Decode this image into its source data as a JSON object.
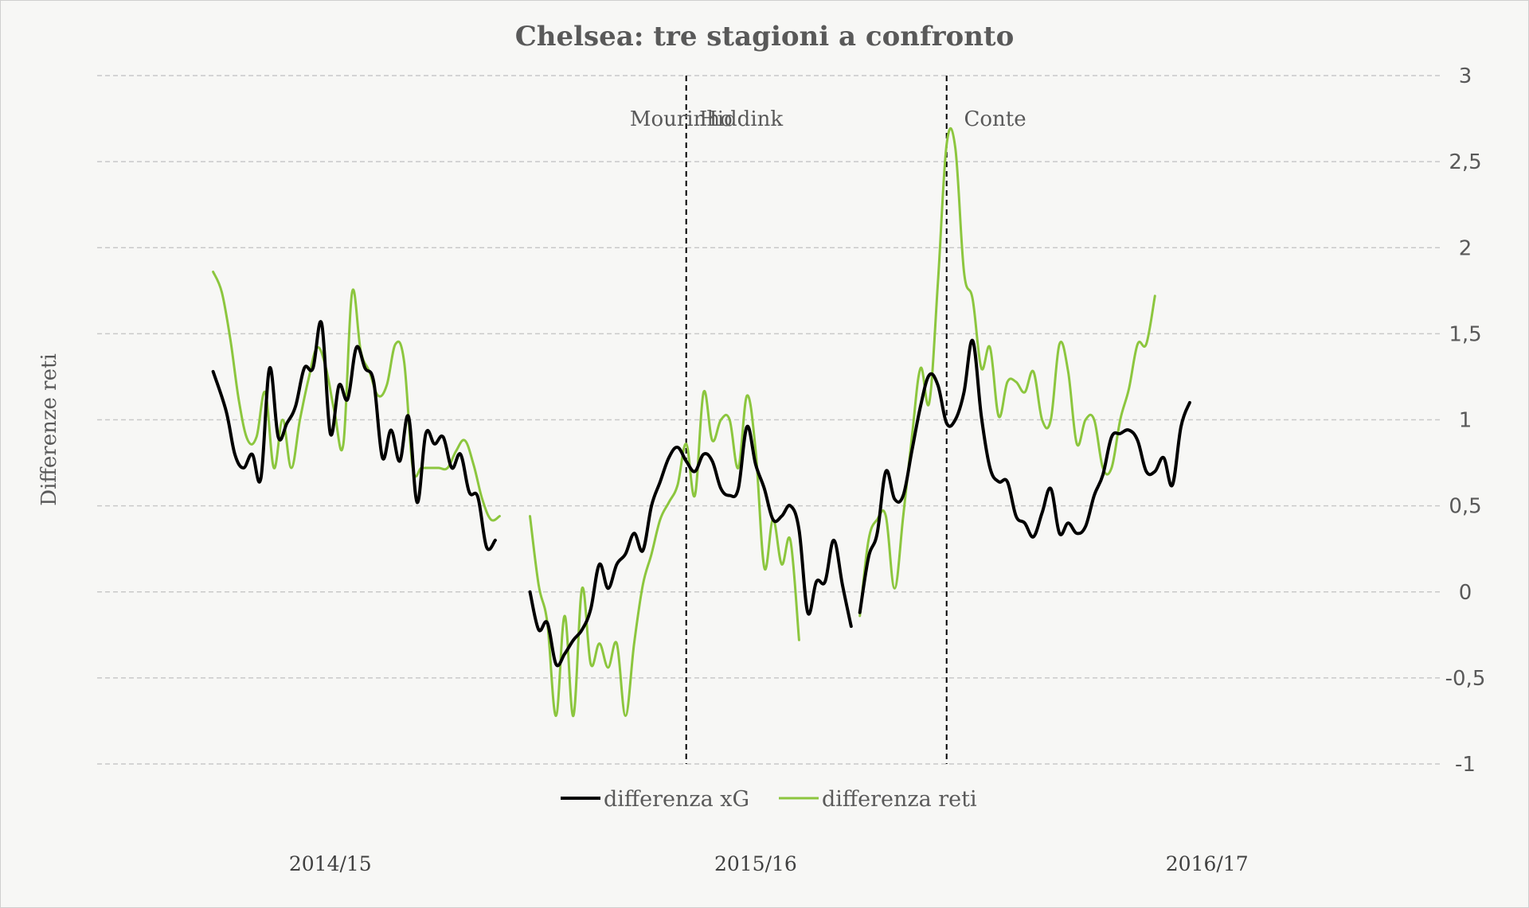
{
  "chart_data": {
    "type": "line",
    "title": "Chelsea: tre stagioni a confronto",
    "ylabel": "Differenze reti",
    "xlabel": "",
    "ylim": [
      -1,
      3
    ],
    "yticks": [
      3,
      2.5,
      2,
      1.5,
      1,
      0.5,
      0,
      -0.5,
      -1
    ],
    "ytick_labels": [
      "3",
      "2,5",
      "2",
      "1,5",
      "1",
      "0,5",
      "0",
      "-0,5",
      "-1"
    ],
    "x_range": [
      0,
      150
    ],
    "grid": true,
    "seasons": [
      {
        "label": "2014/15",
        "x": 22
      },
      {
        "label": "2015/16",
        "x": 71
      },
      {
        "label": "2016/17",
        "x": 123
      }
    ],
    "vlines": [
      63,
      93
    ],
    "annotations": [
      {
        "text": "Mourinho",
        "x": 56.5,
        "y": 2.75
      },
      {
        "text": "Hiddink",
        "x": 64.5,
        "y": 2.75
      },
      {
        "text": "Conte",
        "x": 95,
        "y": 2.75
      }
    ],
    "legend": [
      "differenza xG",
      "differenza reti"
    ],
    "series": [
      {
        "name": "differenza xG",
        "color": "#000000",
        "segments": [
          [
            [
              8.5,
              1.28
            ],
            [
              10,
              1.05
            ],
            [
              11,
              0.8
            ],
            [
              12,
              0.72
            ],
            [
              13,
              0.8
            ],
            [
              14,
              0.66
            ],
            [
              15,
              1.3
            ],
            [
              16,
              0.9
            ],
            [
              17,
              0.98
            ],
            [
              18,
              1.08
            ],
            [
              19,
              1.3
            ],
            [
              20,
              1.3
            ],
            [
              21,
              1.56
            ],
            [
              22,
              0.92
            ],
            [
              23,
              1.2
            ],
            [
              24,
              1.12
            ],
            [
              25,
              1.42
            ],
            [
              26,
              1.3
            ],
            [
              27,
              1.22
            ],
            [
              28,
              0.78
            ],
            [
              29,
              0.94
            ],
            [
              30,
              0.76
            ],
            [
              31,
              1.02
            ],
            [
              32,
              0.52
            ],
            [
              33,
              0.92
            ],
            [
              34,
              0.86
            ],
            [
              35,
              0.9
            ],
            [
              36,
              0.72
            ],
            [
              37,
              0.8
            ],
            [
              38,
              0.58
            ],
            [
              39,
              0.55
            ],
            [
              40,
              0.26
            ],
            [
              41,
              0.3
            ]
          ],
          [
            [
              45,
              0
            ],
            [
              46,
              -0.22
            ],
            [
              47,
              -0.18
            ],
            [
              48,
              -0.42
            ],
            [
              49,
              -0.36
            ],
            [
              50,
              -0.28
            ],
            [
              51,
              -0.22
            ],
            [
              52,
              -0.1
            ],
            [
              53,
              0.16
            ],
            [
              54,
              0.02
            ],
            [
              55,
              0.16
            ],
            [
              56,
              0.22
            ],
            [
              57,
              0.34
            ],
            [
              58,
              0.24
            ],
            [
              59,
              0.5
            ],
            [
              60,
              0.64
            ],
            [
              61,
              0.78
            ],
            [
              62,
              0.84
            ],
            [
              63,
              0.76
            ],
            [
              64,
              0.7
            ],
            [
              65,
              0.8
            ],
            [
              66,
              0.76
            ],
            [
              67,
              0.6
            ],
            [
              68,
              0.56
            ],
            [
              69,
              0.6
            ],
            [
              70,
              0.96
            ],
            [
              71,
              0.74
            ],
            [
              72,
              0.6
            ],
            [
              73,
              0.42
            ],
            [
              74,
              0.44
            ],
            [
              75,
              0.5
            ],
            [
              76,
              0.36
            ],
            [
              77,
              -0.12
            ],
            [
              78,
              0.06
            ],
            [
              79,
              0.06
            ],
            [
              80,
              0.3
            ],
            [
              81,
              0.04
            ],
            [
              82,
              -0.2
            ]
          ],
          [
            [
              83,
              -0.12
            ],
            [
              84,
              0.2
            ],
            [
              85,
              0.34
            ],
            [
              86,
              0.7
            ],
            [
              87,
              0.54
            ],
            [
              88,
              0.56
            ],
            [
              89,
              0.82
            ],
            [
              90,
              1.08
            ],
            [
              91,
              1.26
            ],
            [
              92,
              1.2
            ],
            [
              93,
              0.98
            ],
            [
              94,
              1.0
            ],
            [
              95,
              1.16
            ],
            [
              96,
              1.46
            ],
            [
              97,
              1.02
            ],
            [
              98,
              0.72
            ],
            [
              99,
              0.64
            ],
            [
              100,
              0.64
            ],
            [
              101,
              0.44
            ],
            [
              102,
              0.4
            ],
            [
              103,
              0.32
            ],
            [
              104,
              0.46
            ],
            [
              105,
              0.6
            ],
            [
              106,
              0.34
            ],
            [
              107,
              0.4
            ],
            [
              108,
              0.34
            ],
            [
              109,
              0.38
            ],
            [
              110,
              0.56
            ],
            [
              111,
              0.68
            ],
            [
              112,
              0.9
            ],
            [
              113,
              0.92
            ],
            [
              114,
              0.94
            ],
            [
              115,
              0.88
            ],
            [
              116,
              0.7
            ],
            [
              117,
              0.7
            ],
            [
              118,
              0.78
            ],
            [
              119,
              0.62
            ],
            [
              120,
              0.96
            ],
            [
              121,
              1.1
            ]
          ]
        ]
      },
      {
        "name": "differenza reti",
        "color": "#8cc63e",
        "segments": [
          [
            [
              8.5,
              1.86
            ],
            [
              9.5,
              1.74
            ],
            [
              10.5,
              1.46
            ],
            [
              11.5,
              1.1
            ],
            [
              12.5,
              0.88
            ],
            [
              13.5,
              0.9
            ],
            [
              14.5,
              1.16
            ],
            [
              15.5,
              0.72
            ],
            [
              16.5,
              1.0
            ],
            [
              17.5,
              0.72
            ],
            [
              18.5,
              1.0
            ],
            [
              19.5,
              1.24
            ],
            [
              20.5,
              1.42
            ],
            [
              21.5,
              1.3
            ],
            [
              22.5,
              1.04
            ],
            [
              23.5,
              0.86
            ],
            [
              24.5,
              1.74
            ],
            [
              25.5,
              1.4
            ],
            [
              26.5,
              1.28
            ],
            [
              27.5,
              1.14
            ],
            [
              28.5,
              1.2
            ],
            [
              29.5,
              1.44
            ],
            [
              30.5,
              1.34
            ],
            [
              31.5,
              0.72
            ],
            [
              32.5,
              0.72
            ],
            [
              33.5,
              0.72
            ],
            [
              34.5,
              0.72
            ],
            [
              35.5,
              0.72
            ],
            [
              36.5,
              0.82
            ],
            [
              37.5,
              0.88
            ],
            [
              38.5,
              0.74
            ],
            [
              39.5,
              0.54
            ],
            [
              40.5,
              0.42
            ],
            [
              41.5,
              0.44
            ]
          ],
          [
            [
              45,
              0.44
            ],
            [
              46,
              0.04
            ],
            [
              47,
              -0.18
            ],
            [
              48,
              -0.72
            ],
            [
              49,
              -0.14
            ],
            [
              50,
              -0.72
            ],
            [
              51,
              0.02
            ],
            [
              52,
              -0.42
            ],
            [
              53,
              -0.3
            ],
            [
              54,
              -0.44
            ],
            [
              55,
              -0.3
            ],
            [
              56,
              -0.72
            ],
            [
              57,
              -0.3
            ],
            [
              58,
              0.04
            ],
            [
              59,
              0.22
            ],
            [
              60,
              0.42
            ],
            [
              61,
              0.52
            ],
            [
              62,
              0.62
            ],
            [
              63,
              0.86
            ],
            [
              64,
              0.56
            ],
            [
              65,
              1.16
            ],
            [
              66,
              0.88
            ],
            [
              67,
              1.0
            ],
            [
              68,
              1.0
            ],
            [
              69,
              0.72
            ],
            [
              70,
              1.14
            ],
            [
              71,
              0.82
            ],
            [
              72,
              0.14
            ],
            [
              73,
              0.42
            ],
            [
              74,
              0.16
            ],
            [
              75,
              0.3
            ],
            [
              76,
              -0.28
            ]
          ],
          [
            [
              83,
              -0.14
            ],
            [
              84,
              0.3
            ],
            [
              85,
              0.42
            ],
            [
              86,
              0.44
            ],
            [
              87,
              0.02
            ],
            [
              88,
              0.44
            ],
            [
              89,
              0.9
            ],
            [
              90,
              1.3
            ],
            [
              91,
              1.1
            ],
            [
              92,
              1.8
            ],
            [
              93,
              2.6
            ],
            [
              94,
              2.58
            ],
            [
              95,
              1.86
            ],
            [
              96,
              1.7
            ],
            [
              97,
              1.3
            ],
            [
              98,
              1.42
            ],
            [
              99,
              1.02
            ],
            [
              100,
              1.22
            ],
            [
              101,
              1.22
            ],
            [
              102,
              1.16
            ],
            [
              103,
              1.28
            ],
            [
              104,
              1.0
            ],
            [
              105,
              1.0
            ],
            [
              106,
              1.44
            ],
            [
              107,
              1.28
            ],
            [
              108,
              0.86
            ],
            [
              109,
              1.0
            ],
            [
              110,
              1.0
            ],
            [
              111,
              0.72
            ],
            [
              112,
              0.72
            ],
            [
              113,
              1.0
            ],
            [
              114,
              1.18
            ],
            [
              115,
              1.44
            ],
            [
              116,
              1.44
            ],
            [
              117,
              1.72
            ]
          ]
        ]
      }
    ]
  }
}
